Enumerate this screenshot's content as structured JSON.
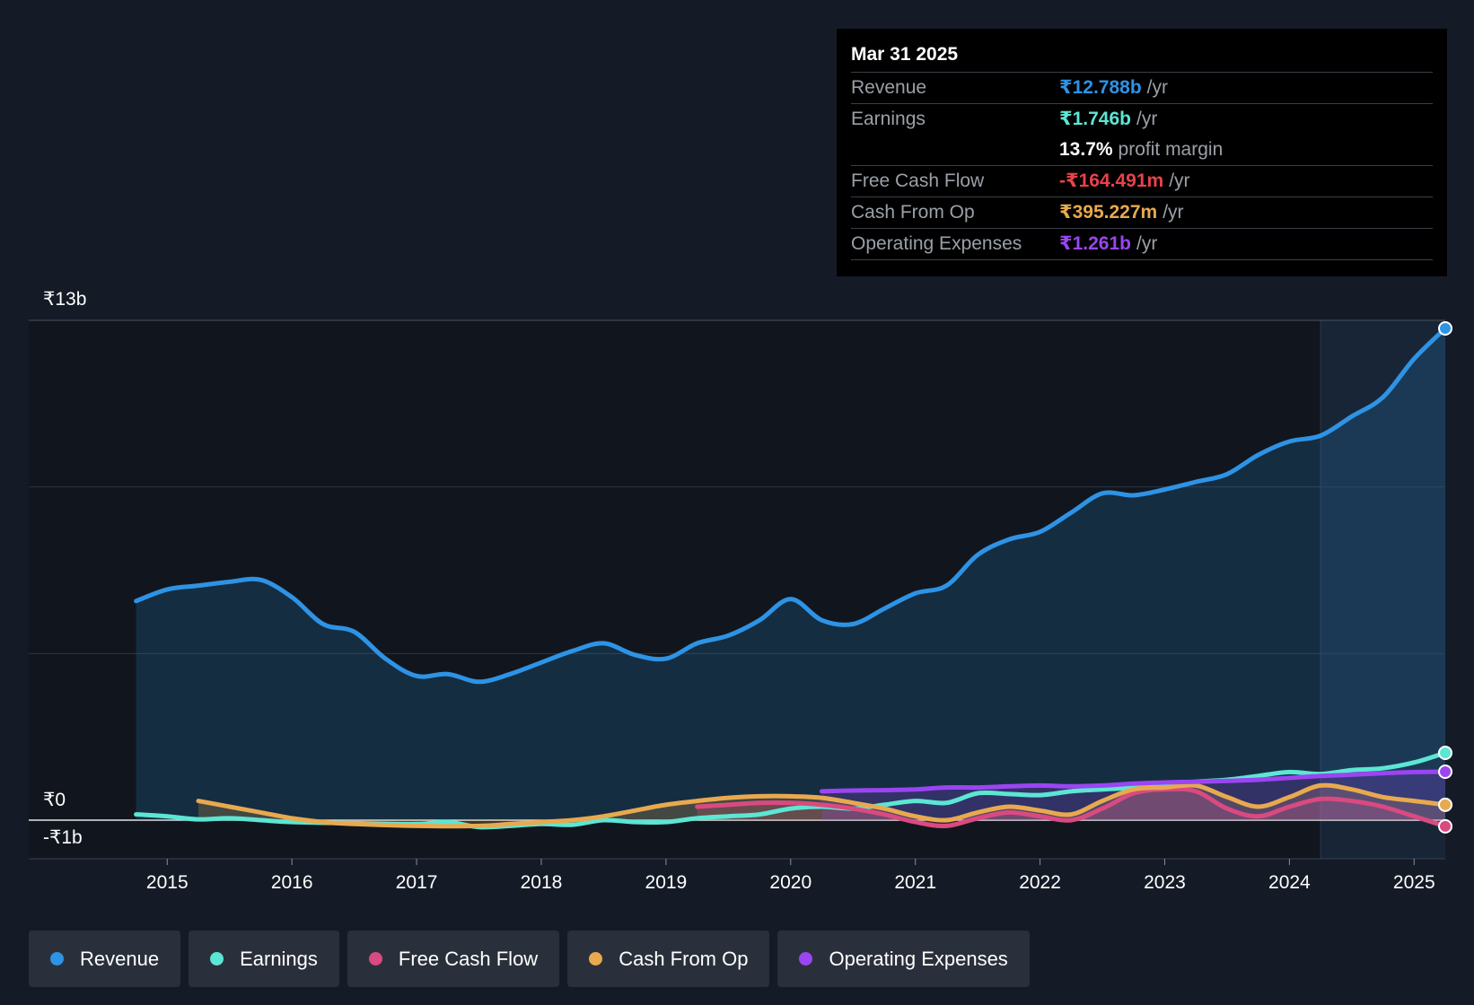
{
  "tooltip": {
    "date": "Mar 31 2025",
    "rows": [
      {
        "label": "Revenue",
        "value": "₹12.788b",
        "unit": "/yr",
        "color": "#2e93e5"
      },
      {
        "label": "Earnings",
        "value": "₹1.746b",
        "unit": "/yr",
        "color": "#5ce6d4"
      },
      {
        "label": "",
        "value": "13.7%",
        "unit": "profit margin",
        "color": "#ffffff"
      },
      {
        "label": "Free Cash Flow",
        "value": "-₹164.491m",
        "unit": "/yr",
        "color": "#e8424a"
      },
      {
        "label": "Cash From Op",
        "value": "₹395.227m",
        "unit": "/yr",
        "color": "#e8a94f"
      },
      {
        "label": "Operating Expenses",
        "value": "₹1.261b",
        "unit": "/yr",
        "color": "#9b45f2"
      }
    ]
  },
  "chart_data": {
    "type": "line",
    "title": "",
    "xlabel": "",
    "ylabel": "",
    "ylim": [
      -1,
      13
    ],
    "x_range": [
      2014.35,
      2025.25
    ],
    "y_tick_labels": {
      "top": "₹13b",
      "zero": "₹0",
      "bottom": "-₹1b"
    },
    "x_ticks": [
      "2015",
      "2016",
      "2017",
      "2018",
      "2019",
      "2020",
      "2021",
      "2022",
      "2023",
      "2024",
      "2025"
    ],
    "forecast_start": 2024.25,
    "series": [
      {
        "name": "Revenue",
        "color": "#2e93e5",
        "fill": true,
        "points": [
          [
            2014.75,
            5.7
          ],
          [
            2015.0,
            6.0
          ],
          [
            2015.25,
            6.1
          ],
          [
            2015.5,
            6.2
          ],
          [
            2015.75,
            6.25
          ],
          [
            2016.0,
            5.8
          ],
          [
            2016.25,
            5.1
          ],
          [
            2016.5,
            4.9
          ],
          [
            2016.75,
            4.2
          ],
          [
            2017.0,
            3.75
          ],
          [
            2017.25,
            3.8
          ],
          [
            2017.5,
            3.6
          ],
          [
            2017.75,
            3.8
          ],
          [
            2018.0,
            4.1
          ],
          [
            2018.25,
            4.4
          ],
          [
            2018.5,
            4.6
          ],
          [
            2018.75,
            4.3
          ],
          [
            2019.0,
            4.2
          ],
          [
            2019.25,
            4.6
          ],
          [
            2019.5,
            4.8
          ],
          [
            2019.75,
            5.2
          ],
          [
            2020.0,
            5.75
          ],
          [
            2020.25,
            5.2
          ],
          [
            2020.5,
            5.1
          ],
          [
            2020.75,
            5.5
          ],
          [
            2021.0,
            5.9
          ],
          [
            2021.25,
            6.1
          ],
          [
            2021.5,
            6.9
          ],
          [
            2021.75,
            7.3
          ],
          [
            2022.0,
            7.5
          ],
          [
            2022.25,
            8.0
          ],
          [
            2022.5,
            8.5
          ],
          [
            2022.75,
            8.45
          ],
          [
            2023.0,
            8.6
          ],
          [
            2023.25,
            8.8
          ],
          [
            2023.5,
            9.0
          ],
          [
            2023.75,
            9.5
          ],
          [
            2024.0,
            9.85
          ],
          [
            2024.25,
            10.0
          ],
          [
            2024.5,
            10.5
          ],
          [
            2024.75,
            11.0
          ],
          [
            2025.0,
            12.0
          ],
          [
            2025.25,
            12.79
          ]
        ]
      },
      {
        "name": "Earnings",
        "color": "#5ce6d4",
        "fill": false,
        "points": [
          [
            2014.75,
            0.15
          ],
          [
            2015.0,
            0.1
          ],
          [
            2015.25,
            0.02
          ],
          [
            2015.5,
            0.05
          ],
          [
            2015.75,
            0.0
          ],
          [
            2016.0,
            -0.05
          ],
          [
            2016.5,
            -0.08
          ],
          [
            2017.0,
            -0.1
          ],
          [
            2017.25,
            -0.05
          ],
          [
            2017.5,
            -0.18
          ],
          [
            2017.75,
            -0.15
          ],
          [
            2018.0,
            -0.1
          ],
          [
            2018.25,
            -0.12
          ],
          [
            2018.5,
            0.0
          ],
          [
            2018.75,
            -0.05
          ],
          [
            2019.0,
            -0.05
          ],
          [
            2019.25,
            0.05
          ],
          [
            2019.5,
            0.1
          ],
          [
            2019.75,
            0.15
          ],
          [
            2020.0,
            0.3
          ],
          [
            2020.25,
            0.35
          ],
          [
            2020.5,
            0.3
          ],
          [
            2020.75,
            0.4
          ],
          [
            2021.0,
            0.5
          ],
          [
            2021.25,
            0.45
          ],
          [
            2021.5,
            0.7
          ],
          [
            2021.75,
            0.68
          ],
          [
            2022.0,
            0.65
          ],
          [
            2022.25,
            0.75
          ],
          [
            2022.5,
            0.8
          ],
          [
            2022.75,
            0.85
          ],
          [
            2023.0,
            0.95
          ],
          [
            2023.25,
            1.0
          ],
          [
            2023.5,
            1.05
          ],
          [
            2023.75,
            1.15
          ],
          [
            2024.0,
            1.25
          ],
          [
            2024.25,
            1.2
          ],
          [
            2024.5,
            1.3
          ],
          [
            2024.75,
            1.35
          ],
          [
            2025.0,
            1.5
          ],
          [
            2025.25,
            1.75
          ]
        ]
      },
      {
        "name": "Free Cash Flow",
        "color": "#d94a80",
        "fill": true,
        "points": [
          [
            2019.25,
            0.35
          ],
          [
            2019.5,
            0.4
          ],
          [
            2019.75,
            0.45
          ],
          [
            2020.0,
            0.45
          ],
          [
            2020.25,
            0.4
          ],
          [
            2020.5,
            0.3
          ],
          [
            2020.75,
            0.15
          ],
          [
            2021.0,
            -0.05
          ],
          [
            2021.25,
            -0.15
          ],
          [
            2021.5,
            0.05
          ],
          [
            2021.75,
            0.2
          ],
          [
            2022.0,
            0.1
          ],
          [
            2022.25,
            0.0
          ],
          [
            2022.5,
            0.3
          ],
          [
            2022.75,
            0.7
          ],
          [
            2023.0,
            0.8
          ],
          [
            2023.25,
            0.75
          ],
          [
            2023.5,
            0.3
          ],
          [
            2023.75,
            0.1
          ],
          [
            2024.0,
            0.35
          ],
          [
            2024.25,
            0.55
          ],
          [
            2024.5,
            0.5
          ],
          [
            2024.75,
            0.35
          ],
          [
            2025.0,
            0.1
          ],
          [
            2025.25,
            -0.16
          ]
        ]
      },
      {
        "name": "Cash From Op",
        "color": "#e8a94f",
        "fill": true,
        "points": [
          [
            2015.25,
            0.5
          ],
          [
            2015.5,
            0.35
          ],
          [
            2015.75,
            0.2
          ],
          [
            2016.0,
            0.05
          ],
          [
            2016.25,
            -0.05
          ],
          [
            2016.5,
            -0.1
          ],
          [
            2017.0,
            -0.15
          ],
          [
            2017.5,
            -0.15
          ],
          [
            2017.75,
            -0.1
          ],
          [
            2018.0,
            -0.05
          ],
          [
            2018.25,
            0.0
          ],
          [
            2018.5,
            0.1
          ],
          [
            2018.75,
            0.25
          ],
          [
            2019.0,
            0.4
          ],
          [
            2019.25,
            0.5
          ],
          [
            2019.5,
            0.58
          ],
          [
            2019.75,
            0.62
          ],
          [
            2020.0,
            0.62
          ],
          [
            2020.25,
            0.58
          ],
          [
            2020.5,
            0.45
          ],
          [
            2020.75,
            0.3
          ],
          [
            2021.0,
            0.1
          ],
          [
            2021.25,
            0.0
          ],
          [
            2021.5,
            0.2
          ],
          [
            2021.75,
            0.35
          ],
          [
            2022.0,
            0.25
          ],
          [
            2022.25,
            0.15
          ],
          [
            2022.5,
            0.5
          ],
          [
            2022.75,
            0.8
          ],
          [
            2023.0,
            0.85
          ],
          [
            2023.25,
            0.9
          ],
          [
            2023.5,
            0.6
          ],
          [
            2023.75,
            0.35
          ],
          [
            2024.0,
            0.6
          ],
          [
            2024.25,
            0.9
          ],
          [
            2024.5,
            0.8
          ],
          [
            2024.75,
            0.6
          ],
          [
            2025.0,
            0.5
          ],
          [
            2025.25,
            0.4
          ]
        ]
      },
      {
        "name": "Operating Expenses",
        "color": "#9b45f2",
        "fill": true,
        "points": [
          [
            2020.25,
            0.75
          ],
          [
            2020.5,
            0.77
          ],
          [
            2020.75,
            0.78
          ],
          [
            2021.0,
            0.8
          ],
          [
            2021.25,
            0.85
          ],
          [
            2021.5,
            0.85
          ],
          [
            2021.75,
            0.88
          ],
          [
            2022.0,
            0.9
          ],
          [
            2022.25,
            0.88
          ],
          [
            2022.5,
            0.9
          ],
          [
            2022.75,
            0.95
          ],
          [
            2023.0,
            0.98
          ],
          [
            2023.25,
            1.0
          ],
          [
            2023.5,
            1.02
          ],
          [
            2023.75,
            1.05
          ],
          [
            2024.0,
            1.1
          ],
          [
            2024.25,
            1.15
          ],
          [
            2024.5,
            1.18
          ],
          [
            2024.75,
            1.22
          ],
          [
            2025.0,
            1.25
          ],
          [
            2025.25,
            1.26
          ]
        ]
      }
    ]
  },
  "legend": [
    {
      "label": "Revenue",
      "color": "#2e93e5"
    },
    {
      "label": "Earnings",
      "color": "#5ce6d4"
    },
    {
      "label": "Free Cash Flow",
      "color": "#d94a80"
    },
    {
      "label": "Cash From Op",
      "color": "#e8a94f"
    },
    {
      "label": "Operating Expenses",
      "color": "#9b45f2"
    }
  ]
}
